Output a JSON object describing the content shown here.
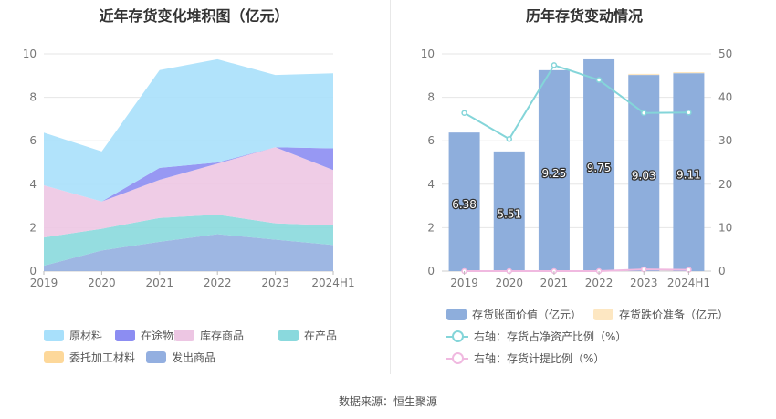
{
  "left_title": "近年存货变化堆积图（亿元）",
  "right_title": "历年存货变动情况",
  "source": "数据来源：恒生聚源",
  "chart_data": [
    {
      "type": "area",
      "stacked": true,
      "title": "近年存货变化堆积图（亿元）",
      "x": [
        "2019",
        "2020",
        "2021",
        "2022",
        "2023",
        "2024H1"
      ],
      "ylim": [
        0,
        10
      ],
      "yticks": [
        0,
        2,
        4,
        6,
        8,
        10
      ],
      "grid": true,
      "legend_position": "bottom",
      "series": [
        {
          "name": "发出商品",
          "color": "#93afe0",
          "values": [
            0.25,
            0.95,
            1.35,
            1.7,
            1.45,
            1.2
          ]
        },
        {
          "name": "委托加工材料",
          "color": "#fdd89a",
          "values": [
            0,
            0,
            0,
            0,
            0,
            0
          ]
        },
        {
          "name": "在产品",
          "color": "#8ad9dd",
          "values": [
            1.3,
            1.0,
            1.1,
            0.9,
            0.75,
            0.9
          ]
        },
        {
          "name": "库存商品",
          "color": "#edc6e3",
          "values": [
            2.4,
            1.25,
            1.75,
            2.35,
            3.5,
            2.55
          ]
        },
        {
          "name": "在途物资",
          "color": "#8c8df2",
          "values": [
            0,
            0,
            0.55,
            0.05,
            0,
            1.0
          ]
        },
        {
          "name": "原材料",
          "color": "#a8e0fb",
          "values": [
            2.43,
            2.31,
            4.5,
            4.75,
            3.33,
            3.46
          ]
        }
      ],
      "legend_order": [
        "原材料",
        "在途物资",
        "库存商品",
        "在产品",
        "委托加工材料",
        "发出商品"
      ]
    },
    {
      "type": "bar",
      "title": "历年存货变动情况",
      "categories": [
        "2019",
        "2020",
        "2021",
        "2022",
        "2023",
        "2024H1"
      ],
      "ylim": [
        0,
        10
      ],
      "yticks": [
        0,
        2,
        4,
        6,
        8,
        10
      ],
      "y2lim": [
        0,
        50
      ],
      "y2ticks": [
        0,
        10,
        20,
        30,
        40,
        50
      ],
      "grid": true,
      "legend_position": "bottom",
      "series": [
        {
          "name": "存货账面价值（亿元）",
          "type": "bar",
          "color": "#8eaedc",
          "values": [
            6.38,
            5.51,
            9.25,
            9.75,
            9.03,
            9.11
          ],
          "labels": [
            "6.38",
            "5.51",
            "9.25",
            "9.75",
            "9.03",
            "9.11"
          ]
        },
        {
          "name": "存货跌价准备（亿元）",
          "type": "bar",
          "color": "#fde7c2",
          "values": [
            0,
            0,
            0,
            0,
            0.05,
            0.05
          ]
        },
        {
          "name": "右轴：存货占净资产比例（%）",
          "type": "line",
          "axis": "right",
          "color": "#84d5d9",
          "values": [
            36.4,
            30.4,
            47.4,
            44.0,
            36.4,
            36.5
          ]
        },
        {
          "name": "右轴：存货计提比例（%）",
          "type": "line",
          "axis": "right",
          "color": "#f0b9e0",
          "values": [
            0,
            0,
            0,
            0,
            0.4,
            0.3
          ]
        }
      ]
    }
  ]
}
